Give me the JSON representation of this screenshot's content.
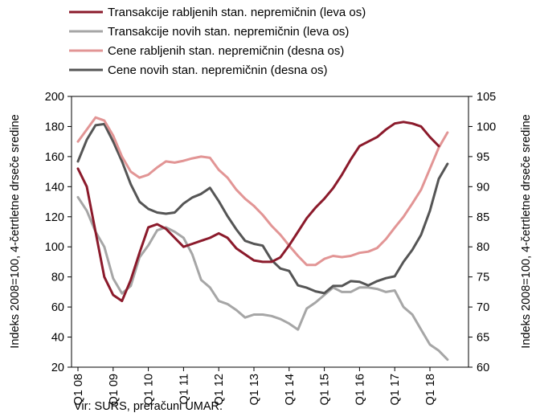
{
  "chart_data": {
    "type": "line",
    "x": [
      "Q1 08",
      "Q2 08",
      "Q3 08",
      "Q4 08",
      "Q1 09",
      "Q2 09",
      "Q3 09",
      "Q4 09",
      "Q1 10",
      "Q2 10",
      "Q3 10",
      "Q4 10",
      "Q1 11",
      "Q2 11",
      "Q3 11",
      "Q4 11",
      "Q1 12",
      "Q2 12",
      "Q3 12",
      "Q4 12",
      "Q1 13",
      "Q2 13",
      "Q3 13",
      "Q4 13",
      "Q1 14",
      "Q2 14",
      "Q3 14",
      "Q4 14",
      "Q1 15",
      "Q2 15",
      "Q3 15",
      "Q4 15",
      "Q1 16",
      "Q2 16",
      "Q3 16",
      "Q4 16",
      "Q1 17",
      "Q2 17",
      "Q3 17",
      "Q4 17",
      "Q1 18",
      "Q2 18",
      "Q3 18"
    ],
    "xtick_labels": [
      "Q1 08",
      "Q1 09",
      "Q1 10",
      "Q1 11",
      "Q1 12",
      "Q1 13",
      "Q1 14",
      "Q1 15",
      "Q1 16",
      "Q1 17",
      "Q1 18"
    ],
    "ylabel_left": "",
    "ylabel_right": "Indeks 2008=100, 4-četrtletne drseče sredine",
    "ylim_left": [
      20,
      200
    ],
    "ylim_right": [
      60,
      105
    ],
    "yticks_left": [
      20,
      40,
      60,
      80,
      100,
      120,
      140,
      160,
      180,
      200
    ],
    "yticks_right": [
      60,
      65,
      70,
      75,
      80,
      85,
      90,
      95,
      100,
      105
    ],
    "grid": false,
    "legend_position": "top",
    "series": [
      {
        "name": "Transakcije rabljenih stan. nepremičnin (leva os)",
        "axis": "left",
        "color": "#8b1a2b",
        "values": [
          152,
          140,
          110,
          80,
          68,
          64,
          78,
          96,
          113,
          115,
          112,
          106,
          100,
          102,
          104,
          106,
          109,
          106,
          99,
          95,
          91,
          90,
          90,
          93,
          101,
          110,
          119,
          126,
          132,
          139,
          148,
          158,
          167,
          170,
          173,
          178,
          182,
          183,
          182,
          180,
          173,
          167,
          null
        ]
      },
      {
        "name": "Transakcije novih stan. nepremičnin (leva os)",
        "axis": "left",
        "color": "#a6a6a6",
        "values": [
          133,
          124,
          110,
          100,
          79,
          69,
          74,
          93,
          101,
          111,
          113,
          110,
          106,
          95,
          78,
          73,
          64,
          62,
          58,
          53,
          55,
          55,
          54,
          52,
          49,
          45,
          59,
          63,
          68,
          73,
          70,
          70,
          73,
          73,
          72,
          70,
          71,
          60,
          55,
          45,
          35,
          31,
          25
        ]
      },
      {
        "name": "Cene rabljenih stan. nepremičnin (desna os)",
        "axis": "right",
        "color": "#e29595",
        "values": [
          97.5,
          99.5,
          101.5,
          101.0,
          98.5,
          95.0,
          92.5,
          91.5,
          92.0,
          93.2,
          94.2,
          94.0,
          94.3,
          94.7,
          95.0,
          94.8,
          92.8,
          91.5,
          89.5,
          88.0,
          86.8,
          85.3,
          83.5,
          82.0,
          80.2,
          78.5,
          77.0,
          77.0,
          78.0,
          78.5,
          78.3,
          78.5,
          79.0,
          79.2,
          79.8,
          81.3,
          83.2,
          85.0,
          87.2,
          89.5,
          93.0,
          96.5,
          99.0
        ]
      },
      {
        "name": "Cene novih stan. nepremičnin (desna os)",
        "axis": "right",
        "color": "#555555",
        "values": [
          94.2,
          97.8,
          100.2,
          100.4,
          97.5,
          94.2,
          90.4,
          87.5,
          86.3,
          85.7,
          85.5,
          85.7,
          87.2,
          88.2,
          88.8,
          89.8,
          87.6,
          85.1,
          82.9,
          81.0,
          80.5,
          80.2,
          77.8,
          76.4,
          76.0,
          73.6,
          73.2,
          72.6,
          72.3,
          73.5,
          73.5,
          74.3,
          74.2,
          73.6,
          74.3,
          74.8,
          75.1,
          77.5,
          79.5,
          82.0,
          86.0,
          91.3,
          93.8
        ]
      }
    ]
  },
  "source_note": "Vir: SURS, preračuni UMAR."
}
